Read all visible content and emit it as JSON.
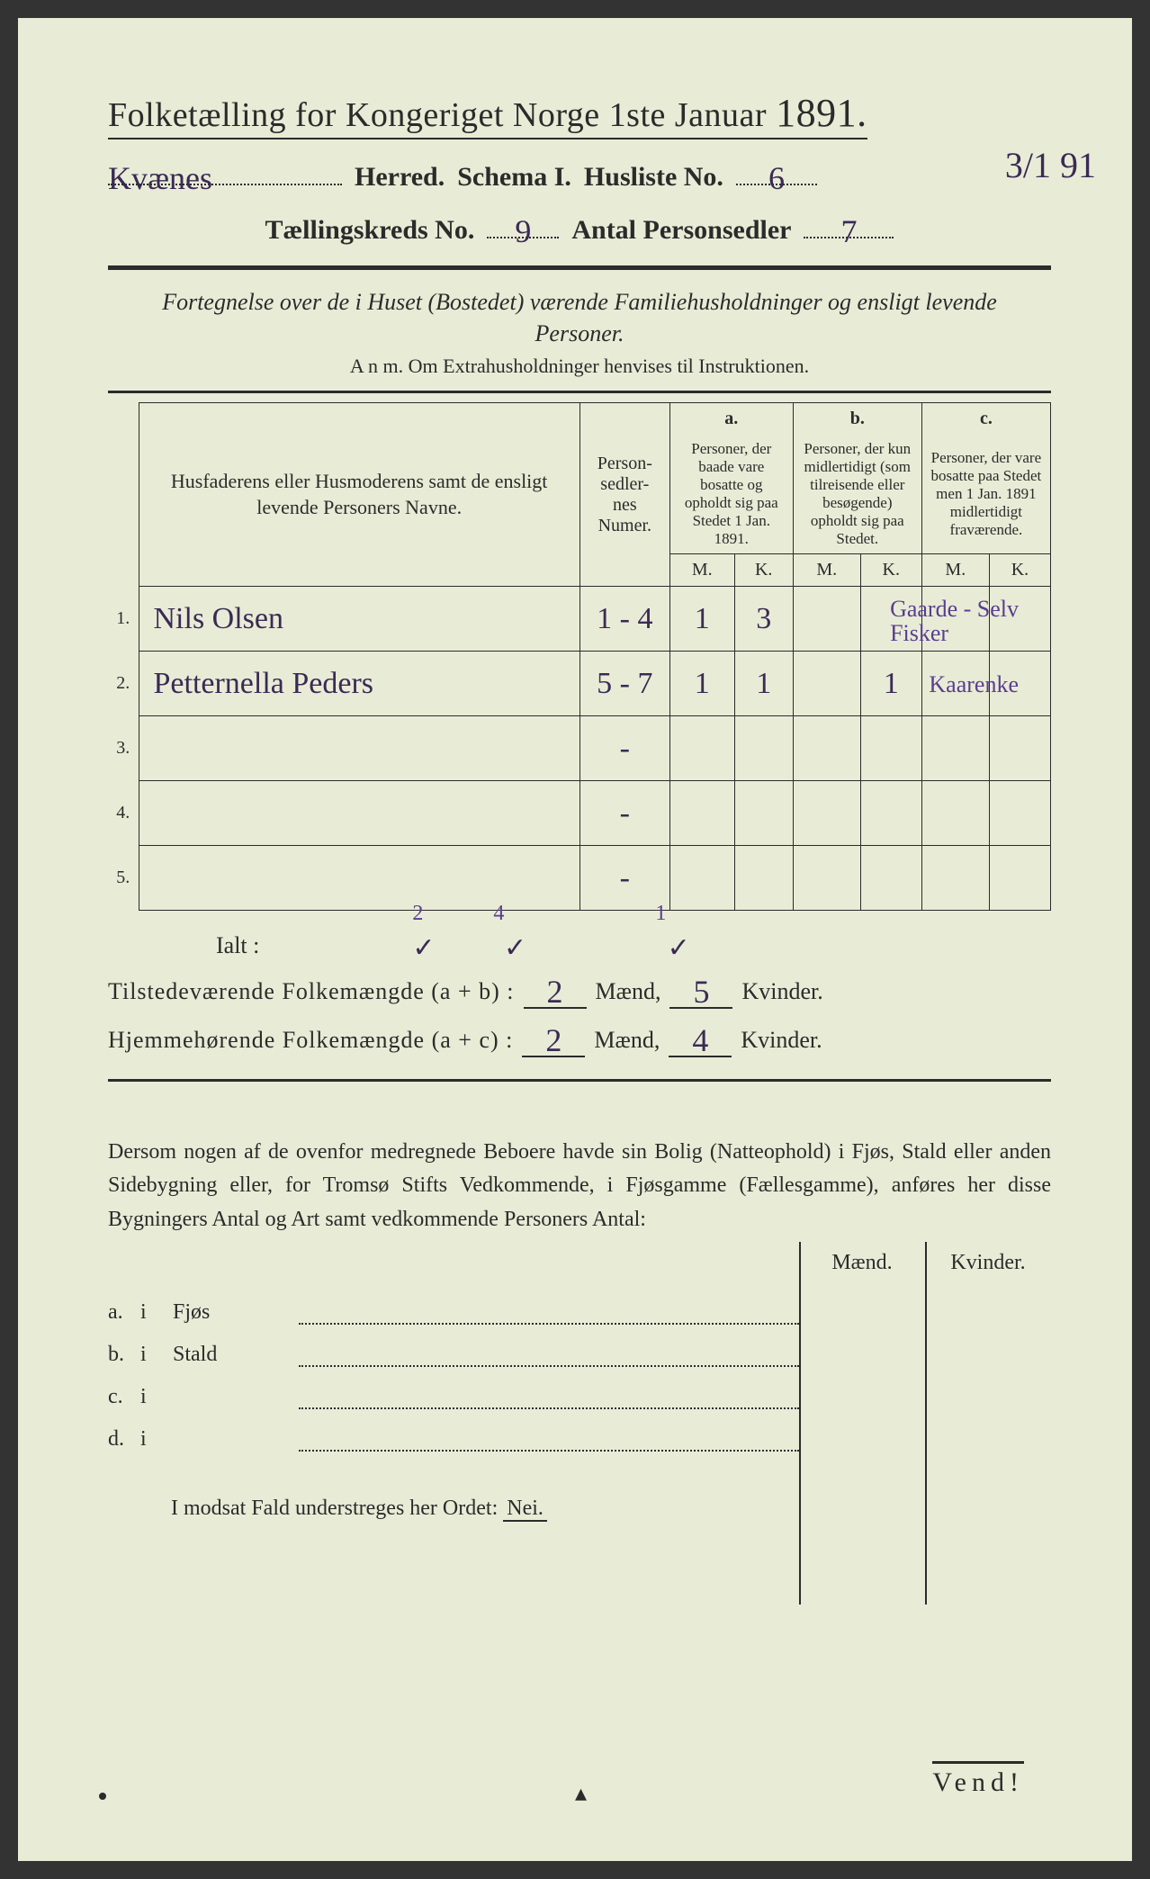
{
  "header": {
    "title_prefix": "Folketælling for Kongeriget Norge 1ste Januar ",
    "year": "1891.",
    "herred_value": "Kvænes",
    "herred_label": "Herred.",
    "schema_label": "Schema I.",
    "husliste_label": "Husliste No.",
    "husliste_no": "6",
    "kreds_label": "Tællingskreds No.",
    "kreds_no": "9",
    "antal_label": "Antal Personsedler",
    "antal_value": "7",
    "corner_date": "3/1 91"
  },
  "fortegnelse": "Fortegnelse over de i Huset (Bostedet) værende Familiehusholdninger og ensligt levende Personer.",
  "anm": "A n m.  Om Extrahusholdninger henvises til Instruktionen.",
  "columns": {
    "names": "Husfaderens eller Husmoderens samt de ensligt levende Personers Navne.",
    "nummer": "Person-\nsedler-\nnes\nNumer.",
    "a_label": "a.",
    "a_text": "Personer, der baade vare bosatte og opholdt sig paa Stedet 1 Jan. 1891.",
    "b_label": "b.",
    "b_text": "Personer, der kun midlertidigt (som tilreisende eller besøgende) opholdt sig paa Stedet.",
    "c_label": "c.",
    "c_text": "Personer, der vare bosatte paa Stedet men 1 Jan. 1891 midlertidigt fraværende.",
    "M": "M.",
    "K": "K."
  },
  "rows": [
    {
      "n": "1.",
      "name": "Nils Olsen",
      "numer": "1 - 4",
      "aM": "1",
      "aK": "3",
      "bM": "",
      "bK": "",
      "cM": "",
      "cK": "",
      "note": "Gaarde - Selv\nFisker"
    },
    {
      "n": "2.",
      "name": "Petternella Peders",
      "numer": "5 - 7",
      "aM": "1",
      "aK": "1",
      "bM": "",
      "bK": "1",
      "cM": "",
      "cK": "",
      "note": "Kaarenke"
    },
    {
      "n": "3.",
      "name": "",
      "numer": "-",
      "aM": "",
      "aK": "",
      "bM": "",
      "bK": "",
      "cM": "",
      "cK": "",
      "note": ""
    },
    {
      "n": "4.",
      "name": "",
      "numer": "-",
      "aM": "",
      "aK": "",
      "bM": "",
      "bK": "",
      "cM": "",
      "cK": "",
      "note": ""
    },
    {
      "n": "5.",
      "name": "",
      "numer": "-",
      "aM": "",
      "aK": "",
      "bM": "",
      "bK": "",
      "cM": "",
      "cK": "",
      "note": ""
    }
  ],
  "ialt": {
    "label": "Ialt :",
    "above": {
      "aM": "2",
      "aK": "4",
      "bK": "1"
    },
    "check": "✓",
    "tilstede_label": "Tilstedeværende  Folkemængde (a + b) :",
    "tilstede_m": "2",
    "tilstede_k": "5",
    "hjemme_label": "Hjemmehørende  Folkemængde (a + c) :",
    "hjemme_m": "2",
    "hjemme_k": "4",
    "maend": "Mænd,",
    "kvinder": "Kvinder."
  },
  "para": "Dersom nogen af de ovenfor medregnede Beboere havde sin Bolig (Natteophold) i Fjøs, Stald eller anden Sidebygning eller, for Tromsø Stifts Vedkommende, i Fjøsgamme (Fællesgamme), anføres her disse Bygningers Antal og Art samt vedkommende Personers Antal:",
  "sub": {
    "maend": "Mænd.",
    "kvinder": "Kvinder.",
    "rows": [
      {
        "a": "a.",
        "i": "i",
        "lbl": "Fjøs"
      },
      {
        "a": "b.",
        "i": "i",
        "lbl": "Stald"
      },
      {
        "a": "c.",
        "i": "i",
        "lbl": ""
      },
      {
        "a": "d.",
        "i": "i",
        "lbl": ""
      }
    ]
  },
  "nei": {
    "text": "I modsat Fald understreges her Ordet:",
    "word": "Nei."
  },
  "vend": "Vend!"
}
